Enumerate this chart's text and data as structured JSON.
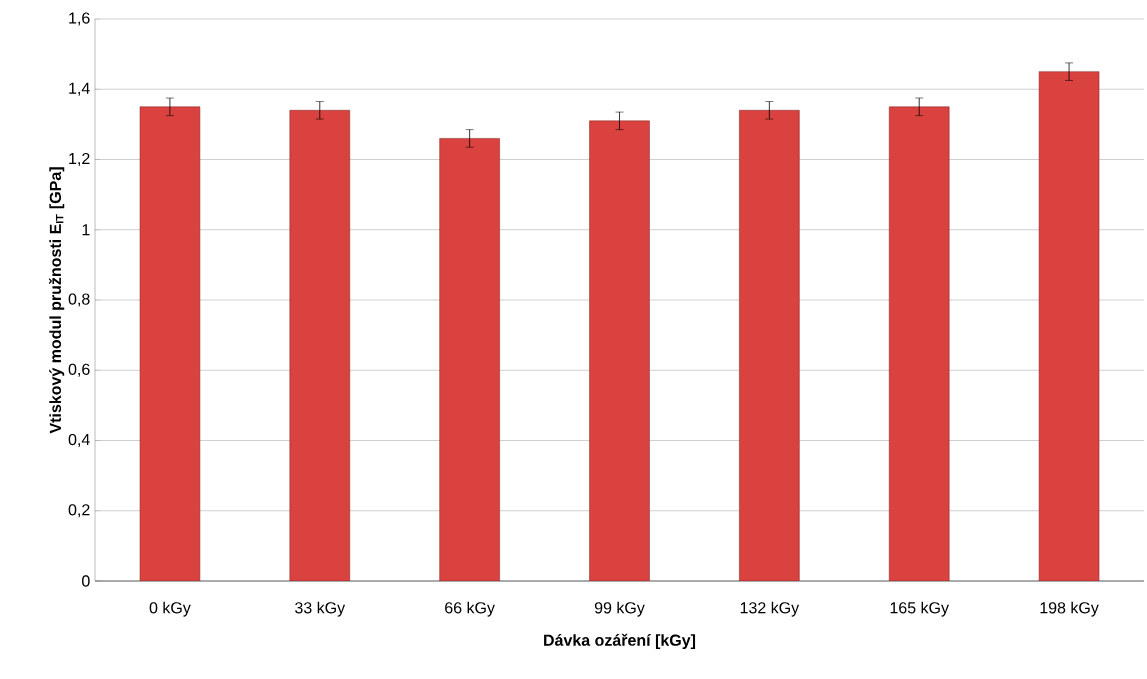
{
  "chart_data": {
    "type": "bar",
    "xlabel": "Dávka ozáření [kGy]",
    "ylabel": "Vtiskový modul pružnosti E$_{IT}$ [GPa]",
    "categories": [
      "0 kGy",
      "33 kGy",
      "66 kGy",
      "99 kGy",
      "132 kGy",
      "165 kGy",
      "198 kGy"
    ],
    "values": [
      1.35,
      1.34,
      1.26,
      1.31,
      1.34,
      1.35,
      1.45
    ],
    "errors": [
      0.025,
      0.025,
      0.025,
      0.025,
      0.025,
      0.025,
      0.025
    ],
    "color": "#d9423f",
    "ylim": [
      0,
      1.6
    ],
    "yticks": [
      0,
      {
        "value": 0.2,
        "label": "0,2"
      },
      {
        "value": 0.4,
        "label": "0,4"
      },
      {
        "value": 0.6,
        "label": "0,6"
      },
      {
        "value": 0.8,
        "label": "0,8"
      },
      1,
      {
        "value": 1.2,
        "label": "1,2"
      },
      {
        "value": 1.4,
        "label": "1,4"
      },
      {
        "value": 1.6,
        "label": "1,6"
      }
    ],
    "grid": "y"
  }
}
